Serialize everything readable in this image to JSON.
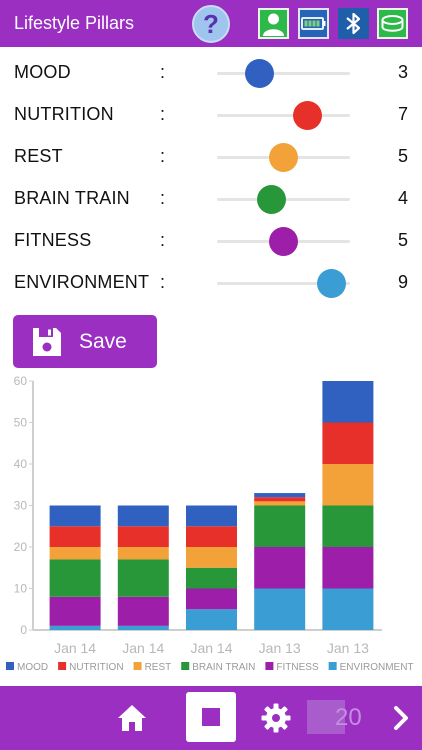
{
  "header": {
    "title": "Lifestyle Pillars",
    "help_label": "?"
  },
  "pillars": [
    {
      "label": "MOOD",
      "colon": ":",
      "value": 3,
      "display": "3",
      "color": "#3060c0"
    },
    {
      "label": "NUTRITION",
      "colon": ":",
      "value": 7,
      "display": "7",
      "color": "#e8302a"
    },
    {
      "label": "REST",
      "colon": ":",
      "value": 5,
      "display": "5",
      "color": "#f3a23a"
    },
    {
      "label": "BRAIN TRAIN",
      "colon": ":",
      "value": 4,
      "display": "4",
      "color": "#27973a"
    },
    {
      "label": "FITNESS",
      "colon": ":",
      "value": 5,
      "display": "5",
      "color": "#9c1ea9"
    },
    {
      "label": "ENVIRONMENT",
      "colon": ":",
      "value": 9,
      "display": "9",
      "color": "#3a9dd3"
    }
  ],
  "slider_range": [
    1,
    10
  ],
  "save_button": {
    "label": "Save"
  },
  "chart_data": {
    "type": "bar",
    "stacked": true,
    "categories": [
      "Jan 14",
      "Jan 14",
      "Jan 14",
      "Jan 13",
      "Jan 13"
    ],
    "ylim": [
      0,
      60
    ],
    "yticks": [
      "0",
      "10",
      "20",
      "30",
      "40",
      "50",
      "60"
    ],
    "legend_position": "bottom",
    "series": [
      {
        "name": "ENVIRONMENT",
        "color": "#3a9dd3",
        "values": [
          1,
          1,
          5,
          10,
          10
        ]
      },
      {
        "name": "FITNESS",
        "color": "#9c1ea9",
        "values": [
          7,
          7,
          5,
          10,
          10
        ]
      },
      {
        "name": "BRAIN TRAIN",
        "color": "#27973a",
        "values": [
          9,
          9,
          5,
          10,
          10
        ]
      },
      {
        "name": "REST",
        "color": "#f3a23a",
        "values": [
          3,
          3,
          5,
          1,
          10
        ]
      },
      {
        "name": "NUTRITION",
        "color": "#e8302a",
        "values": [
          5,
          5,
          5,
          1,
          10
        ]
      },
      {
        "name": "MOOD",
        "color": "#3060c0",
        "values": [
          5,
          5,
          5,
          1,
          10
        ]
      }
    ],
    "legend_order": [
      "MOOD",
      "NUTRITION",
      "REST",
      "BRAIN TRAIN",
      "FITNESS",
      "ENVIRONMENT"
    ]
  },
  "footer": {
    "page_number": "20"
  },
  "colors": {
    "accent": "#9a2fc2",
    "help_bg": "#9fc4ee"
  },
  "icons": [
    "help-icon",
    "user-icon",
    "battery-icon",
    "bluetooth-icon",
    "band-icon",
    "floppy-disk-icon",
    "home-icon",
    "stop-icon",
    "gear-icon",
    "chevron-right-icon"
  ]
}
